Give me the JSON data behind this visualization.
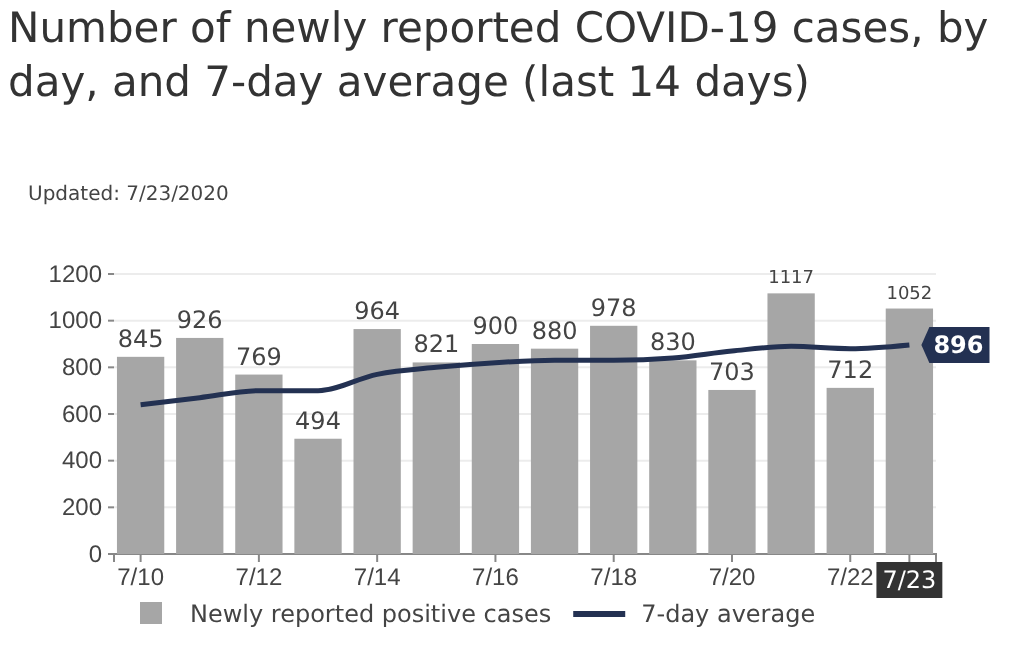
{
  "chart_data": {
    "type": "bar",
    "title": "Number of newly reported COVID-19 cases, by day, and 7-day average (last 14 days)",
    "subtitle": "Updated: 7/23/2020",
    "categories": [
      "7/10",
      null,
      "7/12",
      null,
      "7/14",
      null,
      "7/16",
      null,
      "7/18",
      null,
      "7/20",
      null,
      "7/22",
      "7/23"
    ],
    "series": [
      {
        "name": "Newly reported positive cases",
        "color": "#a6a6a6",
        "values": [
          845,
          926,
          769,
          494,
          964,
          821,
          900,
          880,
          978,
          830,
          703,
          1117,
          712,
          1052
        ],
        "value_labels": [
          "845",
          "926",
          "769",
          "494",
          "964",
          "821",
          "900",
          "880",
          "978",
          "830",
          "703",
          "1117",
          "712",
          "1052"
        ]
      },
      {
        "name": "7-day average",
        "type": "line",
        "color": "#233152",
        "values": [
          640,
          670,
          700,
          700,
          770,
          800,
          820,
          830,
          830,
          840,
          870,
          890,
          880,
          896
        ],
        "value_labels": [
          null,
          null,
          null,
          null,
          null,
          null,
          null,
          null,
          null,
          null,
          null,
          null,
          null,
          "896"
        ]
      }
    ],
    "ylim": [
      0,
      1200
    ],
    "yticks": [
      0,
      200,
      400,
      600,
      800,
      1000,
      1200
    ],
    "grid": "y",
    "legend": "bottom",
    "marker": "none",
    "line_style": "solid"
  }
}
